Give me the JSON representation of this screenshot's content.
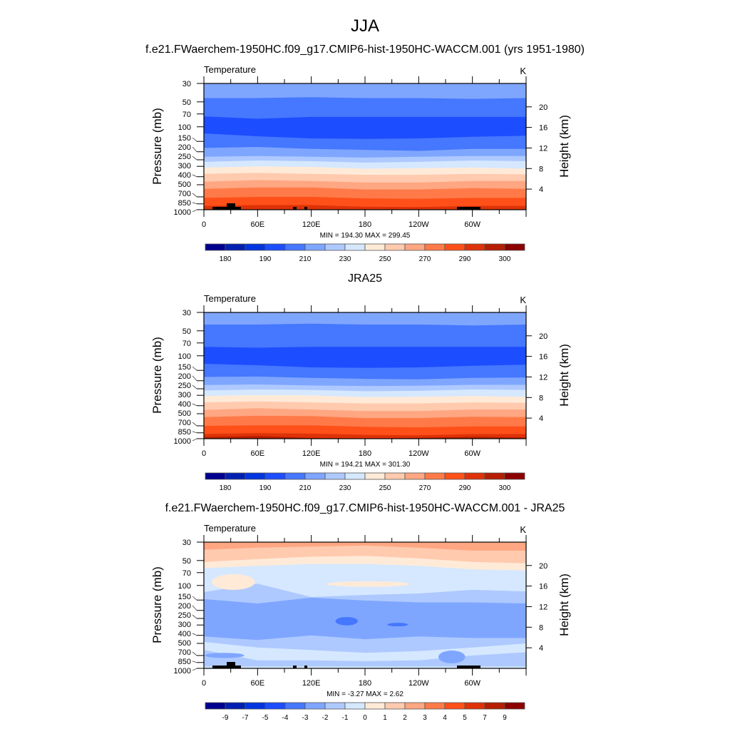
{
  "figure_title": "JJA",
  "palette": [
    "#00008f",
    "#0020b0",
    "#0035e0",
    "#1c4dff",
    "#4577ff",
    "#7fa6ff",
    "#aec9ff",
    "#d5e8ff",
    "#ffead8",
    "#ffcaae",
    "#ffa682",
    "#ff7a48",
    "#ff5019",
    "#de3208",
    "#b51e00",
    "#8b0000"
  ],
  "chart_data": [
    {
      "type": "heatmap",
      "title": "f.e21.FWaerchem-1950HC.f09_g17.CMIP6-hist-1950HC-WACCM.001 (yrs 1951-1980)",
      "left_label": "Temperature",
      "right_label": "K",
      "ylabel": "Pressure (mb)",
      "ylabel_right": "Height (km)",
      "x_ticks": [
        "0",
        "60E",
        "120E",
        "180",
        "120W",
        "60W"
      ],
      "y_ticks": [
        "30",
        "50",
        "70",
        "100",
        "150",
        "200",
        "250",
        "300",
        "400",
        "500",
        "700",
        "850",
        "1000"
      ],
      "y_right_ticks": [
        "4",
        "8",
        "12",
        "16",
        "20"
      ],
      "ylim": [
        1000,
        30
      ],
      "xlim": [
        0,
        360
      ],
      "stats": "MIN = 194.30  MAX = 299.45",
      "colorbar_labels": [
        "180",
        "190",
        "210",
        "230",
        "250",
        "270",
        "290",
        "300"
      ],
      "band_lons": [
        0,
        60,
        120,
        180,
        240,
        300,
        360
      ],
      "bands": [
        {
          "c": 5,
          "top": [
            30,
            30,
            30,
            30,
            30,
            30,
            30
          ]
        },
        {
          "c": 4,
          "top": [
            45,
            45,
            44,
            45,
            45,
            46,
            45
          ]
        },
        {
          "c": 3,
          "top": [
            75,
            80,
            76,
            76,
            76,
            76,
            76
          ]
        },
        {
          "c": 4,
          "top": [
            120,
            130,
            138,
            140,
            138,
            132,
            128
          ]
        },
        {
          "c": 5,
          "top": [
            180,
            175,
            185,
            190,
            195,
            185,
            185
          ]
        },
        {
          "c": 6,
          "top": [
            230,
            225,
            230,
            235,
            230,
            225,
            225
          ]
        },
        {
          "c": 7,
          "top": [
            265,
            255,
            260,
            270,
            265,
            255,
            260
          ]
        },
        {
          "c": 8,
          "top": [
            310,
            300,
            305,
            320,
            315,
            310,
            320
          ]
        },
        {
          "c": 9,
          "top": [
            370,
            360,
            370,
            380,
            380,
            370,
            375
          ]
        },
        {
          "c": 10,
          "top": [
            460,
            440,
            450,
            470,
            470,
            450,
            450
          ]
        },
        {
          "c": 11,
          "top": [
            560,
            540,
            540,
            570,
            570,
            550,
            560
          ]
        },
        {
          "c": 12,
          "top": [
            720,
            700,
            700,
            730,
            740,
            720,
            720
          ]
        },
        {
          "c": 13,
          "top": [
            900,
            880,
            880,
            920,
            930,
            900,
            900
          ]
        }
      ],
      "blobs": [],
      "topography": true
    },
    {
      "type": "heatmap",
      "title": "JRA25",
      "left_label": "Temperature",
      "right_label": "K",
      "ylabel": "Pressure (mb)",
      "ylabel_right": "Height (km)",
      "x_ticks": [
        "0",
        "60E",
        "120E",
        "180",
        "120W",
        "60W"
      ],
      "y_ticks": [
        "30",
        "50",
        "70",
        "100",
        "150",
        "200",
        "250",
        "300",
        "400",
        "500",
        "700",
        "850",
        "1000"
      ],
      "y_right_ticks": [
        "4",
        "8",
        "12",
        "16",
        "20"
      ],
      "ylim": [
        1000,
        30
      ],
      "xlim": [
        0,
        360
      ],
      "stats": "MIN = 194.21  MAX = 301.30",
      "colorbar_labels": [
        "180",
        "190",
        "210",
        "230",
        "250",
        "270",
        "290",
        "300"
      ],
      "band_lons": [
        0,
        60,
        120,
        180,
        240,
        300,
        360
      ],
      "bands": [
        {
          "c": 5,
          "top": [
            30,
            30,
            30,
            30,
            30,
            30,
            30
          ]
        },
        {
          "c": 4,
          "top": [
            42,
            42,
            41,
            42,
            42,
            43,
            42
          ]
        },
        {
          "c": 3,
          "top": [
            78,
            80,
            78,
            78,
            78,
            78,
            78
          ]
        },
        {
          "c": 4,
          "top": [
            125,
            130,
            138,
            140,
            138,
            132,
            128
          ]
        },
        {
          "c": 5,
          "top": [
            180,
            178,
            185,
            190,
            192,
            185,
            183
          ]
        },
        {
          "c": 6,
          "top": [
            225,
            222,
            228,
            232,
            230,
            224,
            224
          ]
        },
        {
          "c": 7,
          "top": [
            262,
            255,
            258,
            268,
            265,
            255,
            258
          ]
        },
        {
          "c": 8,
          "top": [
            305,
            298,
            300,
            315,
            312,
            305,
            312
          ]
        },
        {
          "c": 9,
          "top": [
            365,
            355,
            365,
            375,
            375,
            365,
            370
          ]
        },
        {
          "c": 10,
          "top": [
            450,
            430,
            445,
            465,
            465,
            445,
            445
          ]
        },
        {
          "c": 11,
          "top": [
            550,
            530,
            535,
            565,
            565,
            545,
            550
          ]
        },
        {
          "c": 12,
          "top": [
            700,
            690,
            690,
            720,
            730,
            710,
            710
          ]
        },
        {
          "c": 13,
          "top": [
            880,
            860,
            870,
            900,
            910,
            880,
            880
          ]
        },
        {
          "c": 14,
          "top": [
            960,
            930,
            980,
            990,
            980,
            950,
            970
          ]
        }
      ],
      "blobs": [],
      "topography": false
    },
    {
      "type": "heatmap",
      "title": "f.e21.FWaerchem-1950HC.f09_g17.CMIP6-hist-1950HC-WACCM.001 - JRA25",
      "left_label": "Temperature",
      "right_label": "K",
      "ylabel": "Pressure (mb)",
      "ylabel_right": "Height (km)",
      "x_ticks": [
        "0",
        "60E",
        "120E",
        "180",
        "120W",
        "60W"
      ],
      "y_ticks": [
        "30",
        "50",
        "70",
        "100",
        "150",
        "200",
        "250",
        "300",
        "400",
        "500",
        "700",
        "850",
        "1000"
      ],
      "y_right_ticks": [
        "4",
        "8",
        "12",
        "16",
        "20"
      ],
      "ylim": [
        1000,
        30
      ],
      "xlim": [
        0,
        360
      ],
      "stats": "MIN =  -3.27  MAX =   2.62",
      "colorbar_labels": [
        "-9",
        "-7",
        "-5",
        "-4",
        "-3",
        "-2",
        "-1",
        "0",
        "1",
        "2",
        "3",
        "4",
        "5",
        "7",
        "9"
      ],
      "band_lons": [
        0,
        60,
        120,
        180,
        240,
        300,
        360
      ],
      "bands": [
        {
          "c": 10,
          "top": [
            30,
            30,
            30,
            30,
            30,
            30,
            30
          ]
        },
        {
          "c": 9,
          "top": [
            37,
            35,
            34,
            33,
            35,
            38,
            38
          ]
        },
        {
          "c": 8,
          "top": [
            52,
            48,
            45,
            44,
            47,
            52,
            54
          ]
        },
        {
          "c": 7,
          "top": [
            62,
            58,
            55,
            55,
            58,
            64,
            66
          ]
        },
        {
          "c": 6,
          "top": [
            120,
            95,
            138,
            130,
            125,
            113,
            118
          ]
        },
        {
          "c": 5,
          "top": [
            146,
            165,
            140,
            152,
            160,
            160,
            165
          ]
        },
        {
          "c": 6,
          "top": [
            412,
            455,
            400,
            445,
            412,
            430,
            430
          ]
        },
        {
          "c": 7,
          "top": [
            480,
            560,
            600,
            650,
            620,
            560,
            500
          ]
        },
        {
          "c": 6,
          "top": [
            600,
            800,
            800,
            820,
            800,
            700,
            640
          ]
        },
        {
          "c": 7,
          "top": [
            950,
            950,
            950,
            950,
            950,
            950,
            950
          ]
        }
      ],
      "blobs": [
        {
          "c": 8,
          "lon": [
            9,
            57
          ],
          "p": [
            73,
            113
          ]
        },
        {
          "c": 8,
          "lon": [
            137,
            230
          ],
          "p": [
            89,
            104
          ]
        },
        {
          "c": 4,
          "lon": [
            147,
            172
          ],
          "p": [
            240,
            303
          ]
        },
        {
          "c": 4,
          "lon": [
            205,
            228
          ],
          "p": [
            282,
            312
          ]
        },
        {
          "c": 5,
          "lon": [
            1,
            45
          ],
          "p": [
            650,
            750
          ]
        },
        {
          "c": 5,
          "lon": [
            262,
            292
          ],
          "p": [
            610,
            870
          ]
        }
      ],
      "topography": true
    }
  ]
}
